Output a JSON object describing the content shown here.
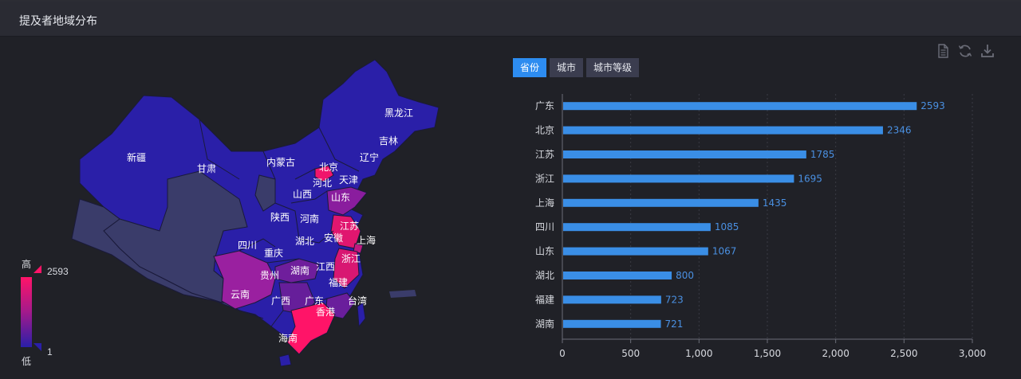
{
  "header": {
    "title": "提及者地域分布"
  },
  "tabs": [
    {
      "label": "省份",
      "active": true
    },
    {
      "label": "城市",
      "active": false
    },
    {
      "label": "城市等级",
      "active": false
    }
  ],
  "toolbox": [
    "document-icon",
    "refresh-icon",
    "download-icon"
  ],
  "map": {
    "legend": {
      "high_label": "高",
      "low_label": "低",
      "max_value": "2593",
      "min_value": "1"
    },
    "colors": {
      "high": "#ff1468",
      "mid": "#a21a8c",
      "low": "#2a1fa8",
      "none": "#3a3c6a"
    },
    "provinces": [
      {
        "name": "新疆",
        "value": 1
      },
      {
        "name": "甘肃",
        "value": 1
      },
      {
        "name": "内蒙古",
        "value": 1
      },
      {
        "name": "黑龙江",
        "value": 1
      },
      {
        "name": "吉林",
        "value": 1
      },
      {
        "name": "辽宁",
        "value": 1
      },
      {
        "name": "北京",
        "value": 2346
      },
      {
        "name": "天津",
        "value": 1
      },
      {
        "name": "河北",
        "value": 1
      },
      {
        "name": "山西",
        "value": 1
      },
      {
        "name": "山东",
        "value": 1067
      },
      {
        "name": "陕西",
        "value": 1
      },
      {
        "name": "河南",
        "value": 1
      },
      {
        "name": "江苏",
        "value": 1785
      },
      {
        "name": "四川",
        "value": 1085
      },
      {
        "name": "湖北",
        "value": 800
      },
      {
        "name": "安徽",
        "value": 1
      },
      {
        "name": "上海",
        "value": 1435
      },
      {
        "name": "重庆",
        "value": 1
      },
      {
        "name": "浙江",
        "value": 1695
      },
      {
        "name": "湖南",
        "value": 721
      },
      {
        "name": "江西",
        "value": 1
      },
      {
        "name": "贵州",
        "value": 1
      },
      {
        "name": "福建",
        "value": 723
      },
      {
        "name": "云南",
        "value": 1
      },
      {
        "name": "广西",
        "value": 1
      },
      {
        "name": "广东",
        "value": 2593
      },
      {
        "name": "台湾",
        "value": 1
      },
      {
        "name": "香港",
        "value": 1
      },
      {
        "name": "海南",
        "value": 1
      }
    ]
  },
  "chart_data": {
    "type": "bar",
    "orientation": "horizontal",
    "categories": [
      "广东",
      "北京",
      "江苏",
      "浙江",
      "上海",
      "四川",
      "山东",
      "湖北",
      "福建",
      "湖南"
    ],
    "values": [
      2593,
      2346,
      1785,
      1695,
      1435,
      1085,
      1067,
      800,
      723,
      721
    ],
    "xlim": [
      0,
      3000
    ],
    "xticks": [
      "0",
      "500",
      "1,000",
      "1,500",
      "2,000",
      "2,500",
      "3,000"
    ],
    "grid": "vertical dashed",
    "bar_color": "#3a8ee6",
    "label_color": "#4a90e2"
  }
}
